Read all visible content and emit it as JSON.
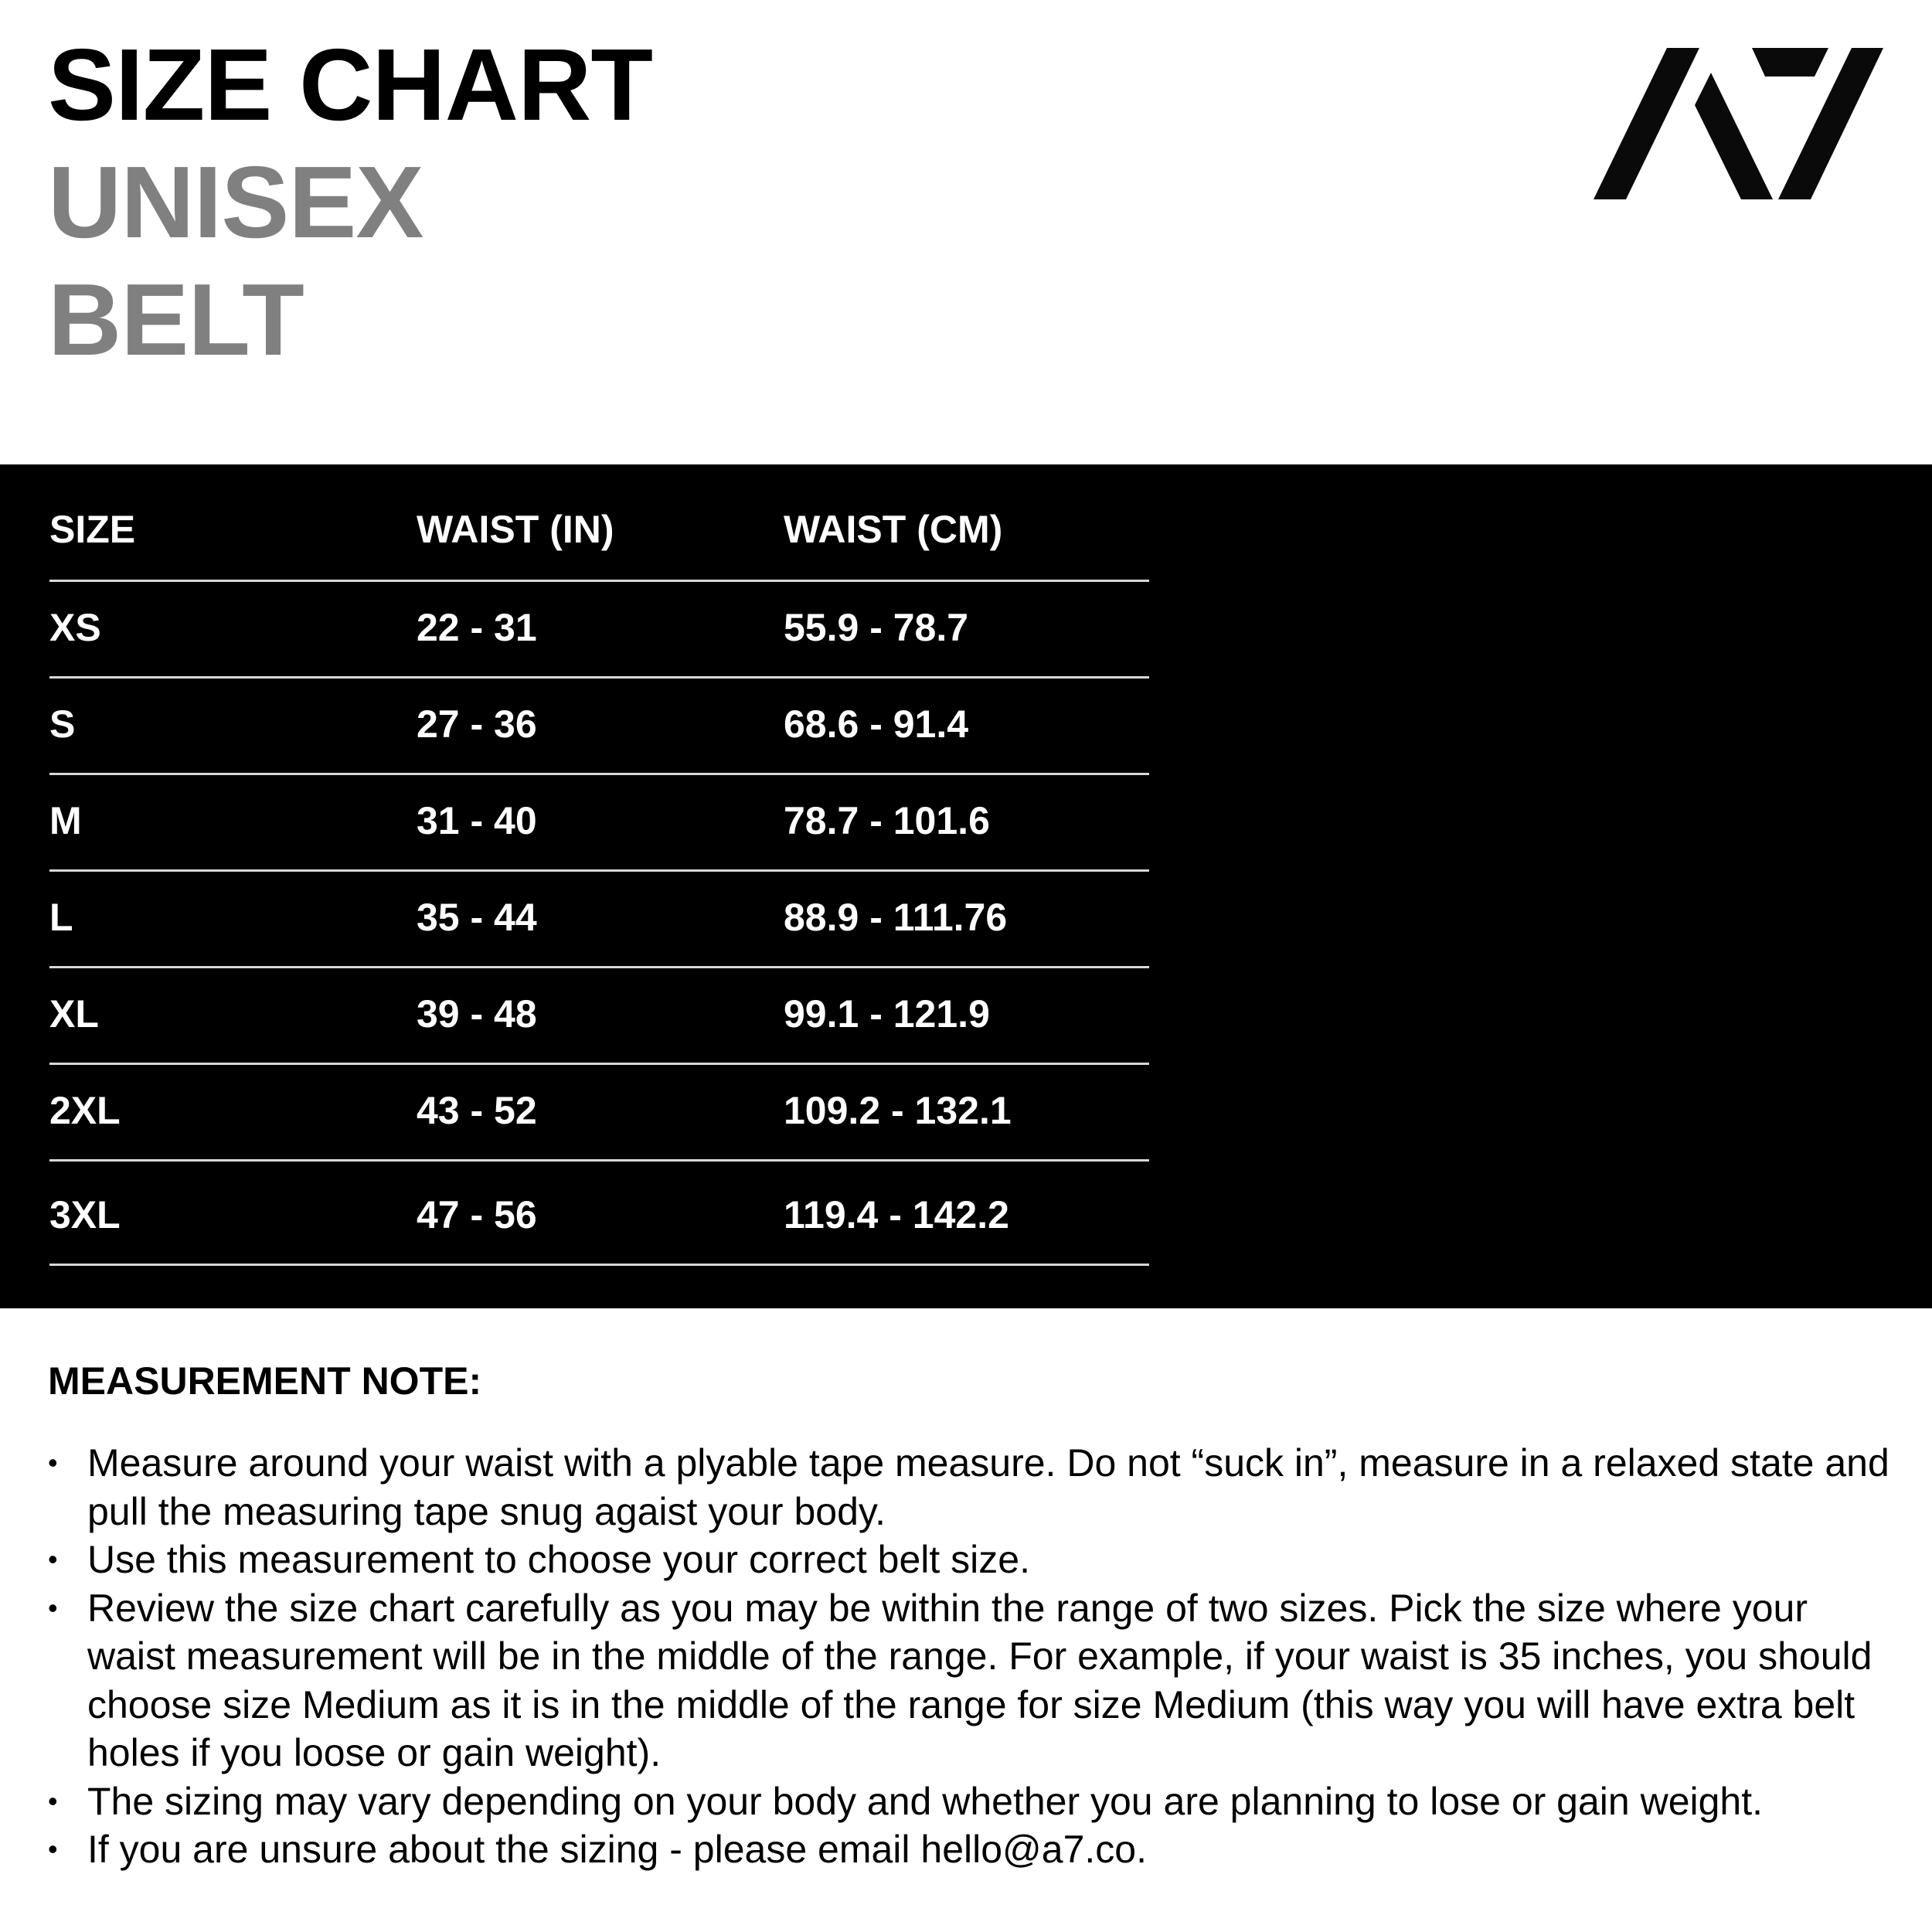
{
  "header": {
    "title": "SIZE CHART",
    "subtitle_line1": "UNISEX",
    "subtitle_line2": "BELT",
    "logo_text": "A7",
    "colors": {
      "title": "#000000",
      "subtitle": "#808080",
      "band": "#000000"
    }
  },
  "table": {
    "columns": [
      "SIZE",
      "WAIST (IN)",
      "WAIST (CM)"
    ],
    "rows": [
      [
        "XS",
        "22 - 31",
        "55.9 - 78.7"
      ],
      [
        "S",
        "27 - 36",
        "68.6 - 91.4"
      ],
      [
        "M",
        "31 - 40",
        "78.7 - 101.6"
      ],
      [
        "L",
        "35 - 44",
        "88.9 - 111.76"
      ],
      [
        "XL",
        "39 - 48",
        "99.1 - 121.9"
      ],
      [
        "2XL",
        "43 - 52",
        "109.2 - 132.1"
      ],
      [
        "3XL",
        "47 - 56",
        "119.4 - 142.2"
      ]
    ]
  },
  "notes": {
    "heading": "MEASUREMENT NOTE:",
    "bullet_symbol": "•",
    "items": [
      "Measure around your waist with a plyable tape measure. Do not “suck in”, measure in a relaxed state and pull the measuring tape snug agaist your body.",
      "Use this measurement to choose your correct belt size.",
      "Review the size chart carefully as you may be within the range of two sizes. Pick the size where your waist measurement will be in the middle of the range. For example, if your waist is 35 inches, you should choose size Medium as it is in the middle of the range for size Medium (this way you will have extra belt holes if you loose or gain weight).",
      "The sizing may vary depending on your body and whether you are planning to lose or gain weight.",
      "If you are unsure about the sizing - please email hello@a7.co."
    ]
  }
}
